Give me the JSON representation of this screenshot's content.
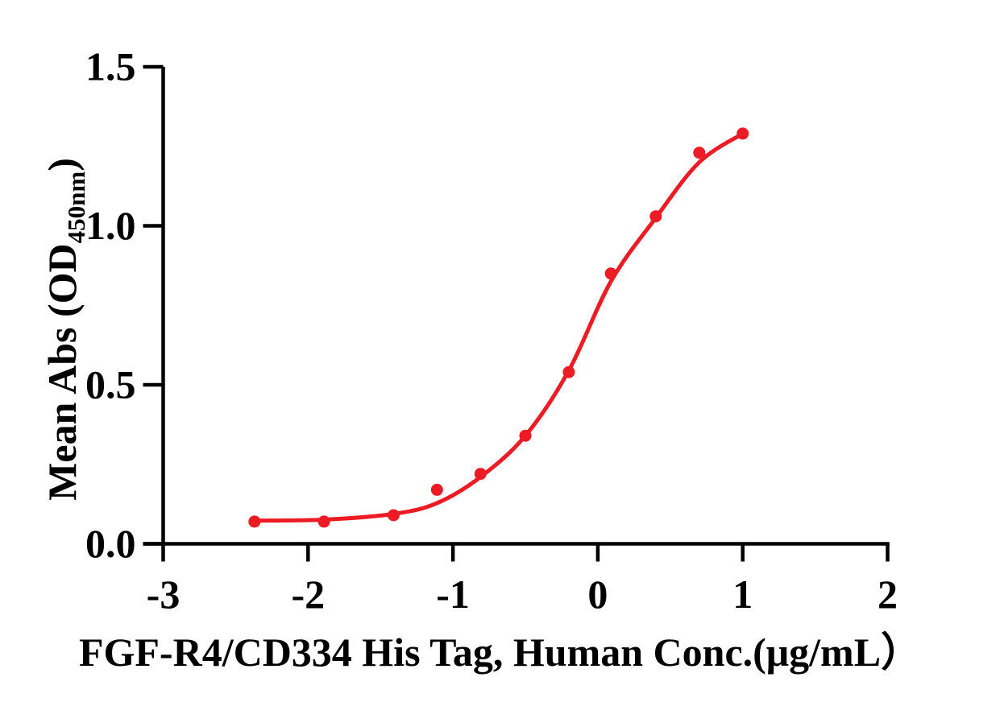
{
  "chart_data": {
    "type": "scatter",
    "title": "",
    "xlabel": "FGF-R4/CD334 His Tag, Human Conc.(μg/mL）",
    "ylabel": "Mean Abs (OD450nm)",
    "ylabel_parts": {
      "prefix": "Mean Abs (OD",
      "subscript": "450nm",
      "suffix": ")"
    },
    "xlim": [
      -3,
      2
    ],
    "ylim": [
      0,
      1.5
    ],
    "x_tick_labels": [
      "-3",
      "-2",
      "-1",
      "0",
      "1",
      "2"
    ],
    "y_tick_labels": [
      "0.0",
      "0.5",
      "1.0",
      "1.5"
    ],
    "grid": false,
    "legend": false,
    "axis_color": "#000000",
    "series": [
      {
        "color": "#ED1C24",
        "marker": "circle",
        "points": [
          [
            -2.37,
            0.07
          ],
          [
            -1.89,
            0.07
          ],
          [
            -1.41,
            0.09
          ],
          [
            -1.11,
            0.17
          ],
          [
            -0.81,
            0.22
          ],
          [
            -0.5,
            0.34
          ],
          [
            -0.2,
            0.54
          ],
          [
            0.09,
            0.85
          ],
          [
            0.4,
            1.03
          ],
          [
            0.7,
            1.23
          ],
          [
            1.0,
            1.29
          ]
        ],
        "fit_curve": [
          [
            -2.37,
            0.073
          ],
          [
            -1.89,
            0.076
          ],
          [
            -1.41,
            0.094
          ],
          [
            -1.11,
            0.128
          ],
          [
            -0.81,
            0.21
          ],
          [
            -0.5,
            0.34
          ],
          [
            -0.2,
            0.545
          ],
          [
            0.09,
            0.825
          ],
          [
            0.4,
            1.025
          ],
          [
            0.7,
            1.2
          ],
          [
            1.0,
            1.29
          ]
        ]
      }
    ]
  }
}
